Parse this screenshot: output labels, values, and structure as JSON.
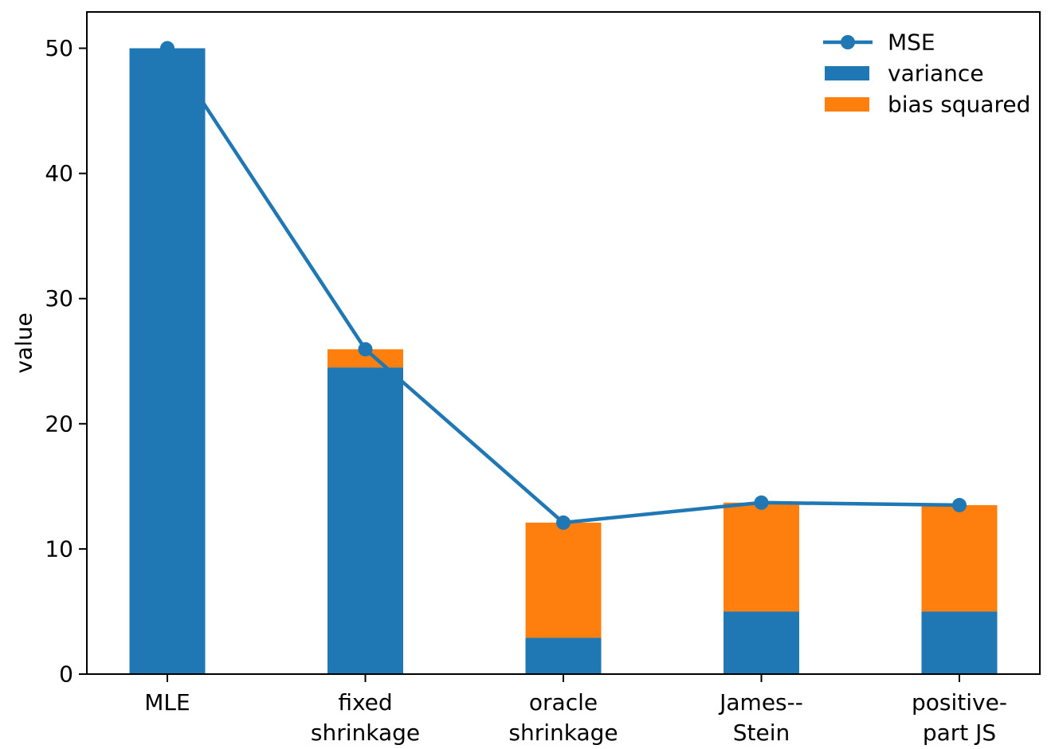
{
  "figure": {
    "background": "#ffffff",
    "title": ""
  },
  "chart_data": {
    "type": "bar",
    "subtype": "stacked-bars-with-line-overlay",
    "title": "",
    "xlabel": "",
    "ylabel": "value",
    "categories": [
      "MLE",
      "fixed\nshrinkage",
      "oracle\nshrinkage",
      "James--\nStein",
      "positive-\npart JS"
    ],
    "series": [
      {
        "name": "variance",
        "type": "bar",
        "color": "#1f77b4",
        "values": [
          50,
          24.5,
          2.9,
          5.0,
          5.0
        ]
      },
      {
        "name": "bias squared",
        "type": "bar",
        "color": "#ff7f0e",
        "values": [
          0,
          1.45,
          9.2,
          8.7,
          8.5
        ]
      },
      {
        "name": "MSE",
        "type": "line",
        "color": "#1f77b4",
        "marker": "circle",
        "values": [
          50,
          25.95,
          12.1,
          13.7,
          13.5
        ]
      }
    ],
    "yticks": [
      "0",
      "10",
      "20",
      "30",
      "40",
      "50"
    ],
    "ytick_values": [
      0,
      10,
      20,
      30,
      40,
      50
    ],
    "ylim": [
      0,
      52.9
    ],
    "grid": false,
    "legend": {
      "position": "upper right",
      "frame": false,
      "entries": [
        {
          "label": "MSE",
          "kind": "line-marker",
          "color": "#1f77b4"
        },
        {
          "label": "variance",
          "kind": "patch",
          "color": "#1f77b4"
        },
        {
          "label": "bias squared",
          "kind": "patch",
          "color": "#ff7f0e"
        }
      ]
    },
    "axis_color": "#000000",
    "text_color": "#000000"
  }
}
